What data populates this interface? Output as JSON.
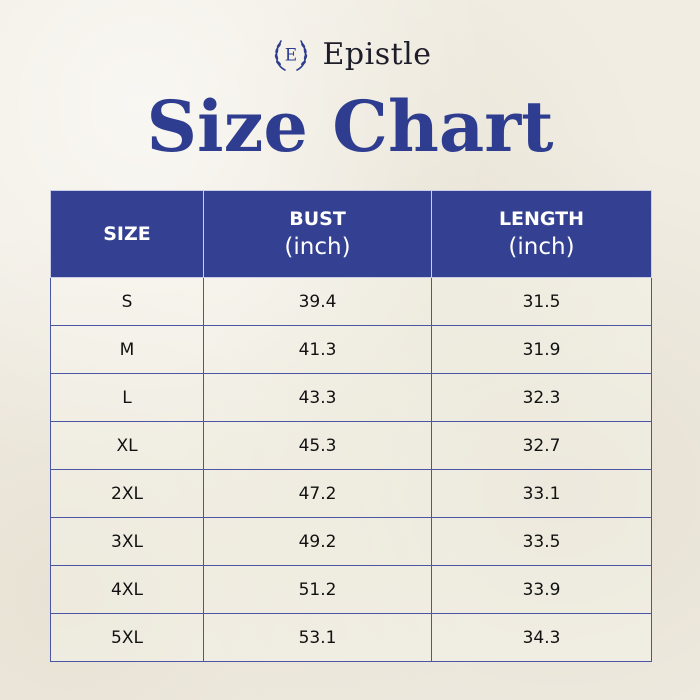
{
  "brand": {
    "logo_letter": "E",
    "name": "Epistle"
  },
  "title": "Size Chart",
  "colors": {
    "accent": "#2e3d8f",
    "header_bg": "#344192",
    "grid_line": "#4a55a8",
    "paper": "#f1ede3"
  },
  "table": {
    "headers": [
      {
        "main": "SIZE",
        "sub": ""
      },
      {
        "main": "BUST",
        "sub": "(inch)"
      },
      {
        "main": "LENGTH",
        "sub": "(inch)"
      }
    ],
    "rows": [
      [
        "S",
        "39.4",
        "31.5"
      ],
      [
        "M",
        "41.3",
        "31.9"
      ],
      [
        "L",
        "43.3",
        "32.3"
      ],
      [
        "XL",
        "45.3",
        "32.7"
      ],
      [
        "2XL",
        "47.2",
        "33.1"
      ],
      [
        "3XL",
        "49.2",
        "33.5"
      ],
      [
        "4XL",
        "51.2",
        "33.9"
      ],
      [
        "5XL",
        "53.1",
        "34.3"
      ]
    ]
  }
}
